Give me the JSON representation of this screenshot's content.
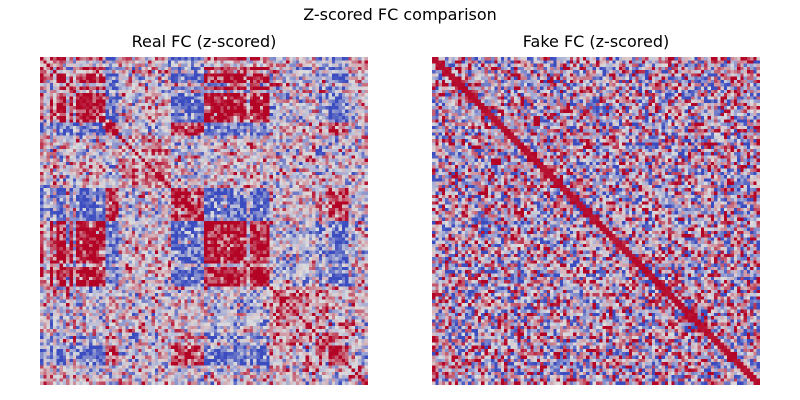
{
  "figure": {
    "title": "Z-scored FC comparison"
  },
  "colormap": {
    "name": "coolwarm",
    "low": "#3b4cc0",
    "mid": "#dddddd",
    "high": "#b40426"
  },
  "chart_data": [
    {
      "type": "heatmap",
      "title": "Real FC (z-scored)",
      "matrix_size": 100,
      "axes_visible": false,
      "structure": "block-structured: large positively correlated blocks with strong negative bands; diagonal high"
    },
    {
      "type": "heatmap",
      "title": "Fake FC (z-scored)",
      "matrix_size": 100,
      "axes_visible": false,
      "structure": "noisy, weakly structured with high diagonal"
    }
  ]
}
